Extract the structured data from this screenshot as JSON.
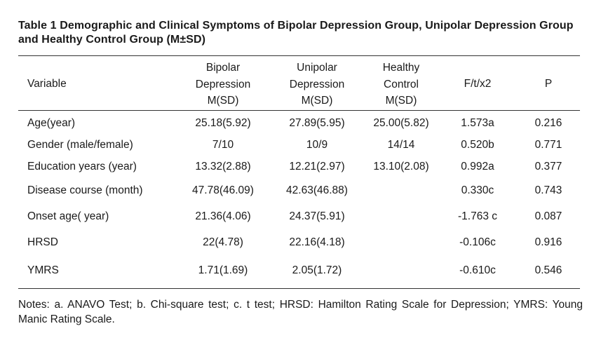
{
  "title": "Table 1 Demographic and Clinical Symptoms of Bipolar Depression Group, Unipolar Depression Group and Healthy Control Group (M±SD)",
  "headers": {
    "variable": "Variable",
    "bipolar": [
      "Bipolar",
      "Depression",
      "M(SD)"
    ],
    "unipolar": [
      "Unipolar",
      "Depression",
      "M(SD)"
    ],
    "healthy": [
      "Healthy",
      "Control",
      "M(SD)"
    ],
    "stat": "F/t/x2",
    "p": "P"
  },
  "rows": [
    {
      "variable": "Age(year)",
      "bipolar": "25.18(5.92)",
      "unipolar": "27.89(5.95)",
      "healthy": "25.00(5.82)",
      "stat": "1.573a",
      "p": "0.216"
    },
    {
      "variable": "Gender (male/female)",
      "bipolar": "7/10",
      "unipolar": "10/9",
      "healthy": "14/14",
      "stat": "0.520b",
      "p": "0.771"
    },
    {
      "variable": "Education years (year)",
      "bipolar": "13.32(2.88)",
      "unipolar": "12.21(2.97)",
      "healthy": "13.10(2.08)",
      "stat": "0.992a",
      "p": "0.377"
    },
    {
      "variable": "Disease course (month)",
      "bipolar": "47.78(46.09)",
      "unipolar": "42.63(46.88)",
      "healthy": "",
      "stat": "0.330c",
      "p": "0.743"
    },
    {
      "variable": "Onset age( year)",
      "bipolar": "21.36(4.06)",
      "unipolar": "24.37(5.91)",
      "healthy": "",
      "stat": "-1.763 c",
      "p": "0.087"
    },
    {
      "variable": "HRSD",
      "bipolar": "22(4.78)",
      "unipolar": "22.16(4.18)",
      "healthy": "",
      "stat": "-0.106c",
      "p": "0.916"
    },
    {
      "variable": "YMRS",
      "bipolar": "1.71(1.69)",
      "unipolar": "2.05(1.72)",
      "healthy": "",
      "stat": "-0.610c",
      "p": "0.546"
    }
  ],
  "notes": "Notes: a. ANAVO Test; b. Chi-square test; c. t test; HRSD: Hamilton Rating Scale for Depression; YMRS: Young Manic Rating Scale."
}
